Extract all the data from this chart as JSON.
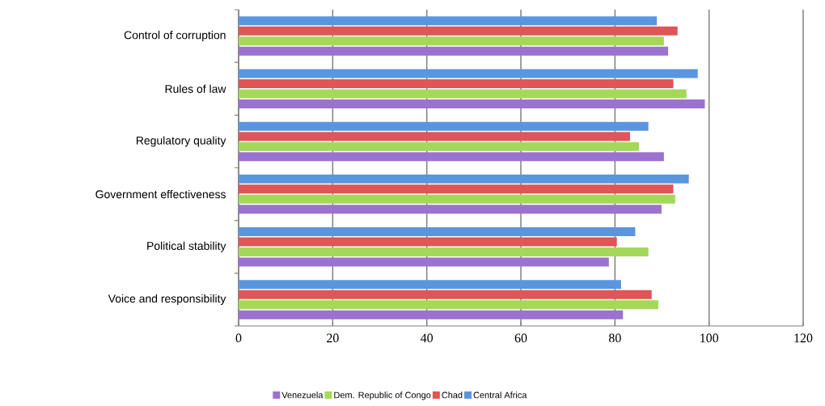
{
  "chart_data": {
    "type": "bar",
    "orientation": "horizontal",
    "categories": [
      "Control of corruption",
      "Rules of law",
      "Regulatory quality",
      "Government effectiveness",
      "Political stability",
      "Voice and responsibility"
    ],
    "series": [
      {
        "name": "Venezuela",
        "color": "#9b72cf",
        "values": [
          91.3,
          99.1,
          90.4,
          89.9,
          78.7,
          81.7
        ]
      },
      {
        "name": "Dem. Republic of Congo",
        "color": "#a5d85a",
        "values": [
          90.4,
          95.2,
          85.1,
          92.8,
          87.1,
          89.2
        ]
      },
      {
        "name": "Chad",
        "color": "#e05555",
        "values": [
          93.3,
          92.4,
          83.2,
          92.4,
          80.4,
          87.8
        ]
      },
      {
        "name": "Central Africa",
        "color": "#5a96e0",
        "values": [
          88.9,
          97.6,
          87.1,
          95.7,
          84.3,
          81.3
        ]
      }
    ],
    "xlim": [
      0,
      120
    ],
    "xticks": [
      0,
      20,
      40,
      60,
      80,
      100,
      120
    ],
    "grid": "x",
    "legend": "bottom"
  }
}
